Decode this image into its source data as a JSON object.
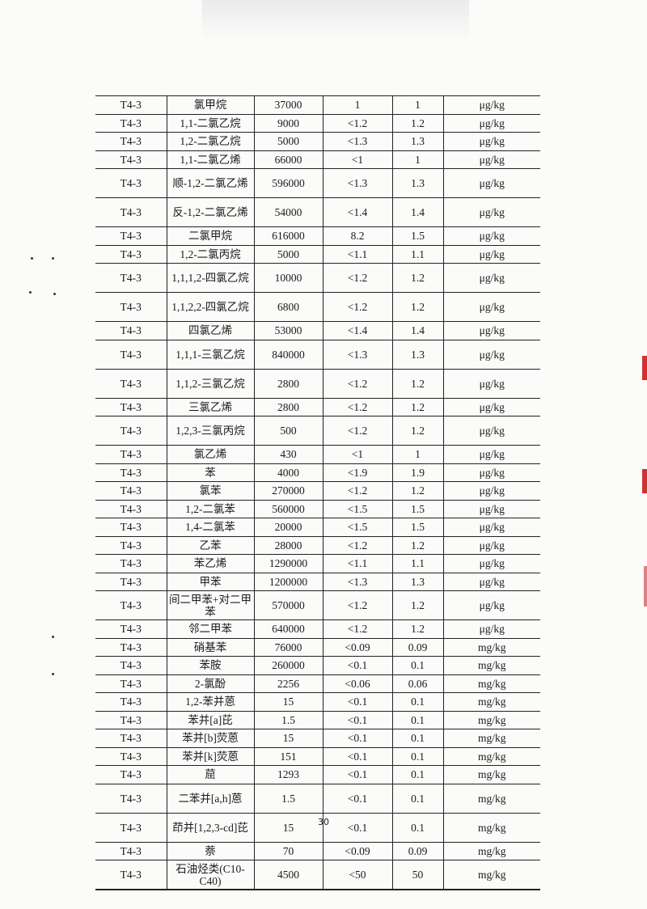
{
  "table": {
    "rows": [
      [
        "T4-3",
        "氯甲烷",
        "37000",
        "1",
        "1",
        "μg/kg"
      ],
      [
        "T4-3",
        "1,1-二氯乙烷",
        "9000",
        "<1.2",
        "1.2",
        "μg/kg"
      ],
      [
        "T4-3",
        "1,2-二氯乙烷",
        "5000",
        "<1.3",
        "1.3",
        "μg/kg"
      ],
      [
        "T4-3",
        "1,1-二氯乙烯",
        "66000",
        "<1",
        "1",
        "μg/kg"
      ],
      [
        "T4-3",
        "顺-1,2-二氯乙烯",
        "596000",
        "<1.3",
        "1.3",
        "μg/kg"
      ],
      [
        "T4-3",
        "反-1,2-二氯乙烯",
        "54000",
        "<1.4",
        "1.4",
        "μg/kg"
      ],
      [
        "T4-3",
        "二氯甲烷",
        "616000",
        "8.2",
        "1.5",
        "μg/kg"
      ],
      [
        "T4-3",
        "1,2-二氯丙烷",
        "5000",
        "<1.1",
        "1.1",
        "μg/kg"
      ],
      [
        "T4-3",
        "1,1,1,2-四氯乙烷",
        "10000",
        "<1.2",
        "1.2",
        "μg/kg"
      ],
      [
        "T4-3",
        "1,1,2,2-四氯乙烷",
        "6800",
        "<1.2",
        "1.2",
        "μg/kg"
      ],
      [
        "T4-3",
        "四氯乙烯",
        "53000",
        "<1.4",
        "1.4",
        "μg/kg"
      ],
      [
        "T4-3",
        "1,1,1-三氯乙烷",
        "840000",
        "<1.3",
        "1.3",
        "μg/kg"
      ],
      [
        "T4-3",
        "1,1,2-三氯乙烷",
        "2800",
        "<1.2",
        "1.2",
        "μg/kg"
      ],
      [
        "T4-3",
        "三氯乙烯",
        "2800",
        "<1.2",
        "1.2",
        "μg/kg"
      ],
      [
        "T4-3",
        "1,2,3-三氯丙烷",
        "500",
        "<1.2",
        "1.2",
        "μg/kg"
      ],
      [
        "T4-3",
        "氯乙烯",
        "430",
        "<1",
        "1",
        "μg/kg"
      ],
      [
        "T4-3",
        "苯",
        "4000",
        "<1.9",
        "1.9",
        "μg/kg"
      ],
      [
        "T4-3",
        "氯苯",
        "270000",
        "<1.2",
        "1.2",
        "μg/kg"
      ],
      [
        "T4-3",
        "1,2-二氯苯",
        "560000",
        "<1.5",
        "1.5",
        "μg/kg"
      ],
      [
        "T4-3",
        "1,4-二氯苯",
        "20000",
        "<1.5",
        "1.5",
        "μg/kg"
      ],
      [
        "T4-3",
        "乙苯",
        "28000",
        "<1.2",
        "1.2",
        "μg/kg"
      ],
      [
        "T4-3",
        "苯乙烯",
        "1290000",
        "<1.1",
        "1.1",
        "μg/kg"
      ],
      [
        "T4-3",
        "甲苯",
        "1200000",
        "<1.3",
        "1.3",
        "μg/kg"
      ],
      [
        "T4-3",
        "间二甲苯+对二甲苯",
        "570000",
        "<1.2",
        "1.2",
        "μg/kg"
      ],
      [
        "T4-3",
        "邻二甲苯",
        "640000",
        "<1.2",
        "1.2",
        "μg/kg"
      ],
      [
        "T4-3",
        "硝基苯",
        "76000",
        "<0.09",
        "0.09",
        "mg/kg"
      ],
      [
        "T4-3",
        "苯胺",
        "260000",
        "<0.1",
        "0.1",
        "mg/kg"
      ],
      [
        "T4-3",
        "2-氯酚",
        "2256",
        "<0.06",
        "0.06",
        "mg/kg"
      ],
      [
        "T4-3",
        "1,2-苯并蒽",
        "15",
        "<0.1",
        "0.1",
        "mg/kg"
      ],
      [
        "T4-3",
        "苯并[a]芘",
        "1.5",
        "<0.1",
        "0.1",
        "mg/kg"
      ],
      [
        "T4-3",
        "苯并[b]荧蒽",
        "15",
        "<0.1",
        "0.1",
        "mg/kg"
      ],
      [
        "T4-3",
        "苯并[k]荧蒽",
        "151",
        "<0.1",
        "0.1",
        "mg/kg"
      ],
      [
        "T4-3",
        "䓛",
        "1293",
        "<0.1",
        "0.1",
        "mg/kg"
      ],
      [
        "T4-3",
        "二苯并[a,h]蒽",
        "1.5",
        "<0.1",
        "0.1",
        "mg/kg"
      ],
      [
        "T4-3",
        "茚并[1,2,3-cd]芘",
        "15",
        "<0.1",
        "0.1",
        "mg/kg"
      ],
      [
        "T4-3",
        "萘",
        "70",
        "<0.09",
        "0.09",
        "mg/kg"
      ],
      [
        "T4-3",
        "石油烃类(C10-C40)",
        "4500",
        "<50",
        "50",
        "mg/kg"
      ]
    ]
  },
  "page_number": "30"
}
